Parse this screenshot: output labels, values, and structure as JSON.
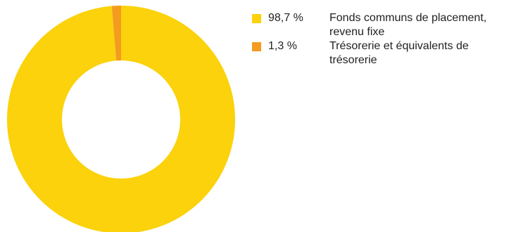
{
  "chart_data": {
    "type": "pie",
    "variant": "donut",
    "title": "",
    "categories": [
      "Fonds communs de placement, revenu fixe",
      "Trésorerie et équivalents de trésorerie"
    ],
    "values": [
      98.7,
      1.3
    ],
    "value_labels": [
      "98,7 %",
      "1,3 %"
    ],
    "colors": [
      "#FBD20B",
      "#F39C1F"
    ],
    "legend_placement": "right"
  }
}
